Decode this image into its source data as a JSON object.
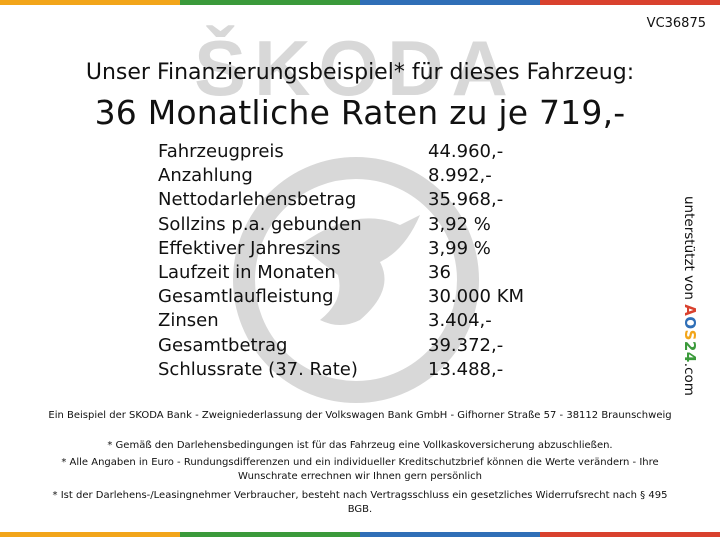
{
  "stripe_colors": [
    "#f2a51a",
    "#3b9a3b",
    "#2f6fb7",
    "#d9412e"
  ],
  "watermark": {
    "text": "ŠKODA",
    "color": "#d8d8d8"
  },
  "code": "VC36875",
  "heading": {
    "line1": "Unser Finanzierungsbeispiel* für dieses Fahrzeug:",
    "line2": "36 Monatliche Raten zu je 719,-"
  },
  "rows": [
    {
      "label": "Fahrzeugpreis",
      "value": "44.960,-"
    },
    {
      "label": "Anzahlung",
      "value": "8.992,-"
    },
    {
      "label": "Nettodarlehensbetrag",
      "value": "35.968,-"
    },
    {
      "label": "Sollzins p.a. gebunden",
      "value": "3,92 %"
    },
    {
      "label": "Effektiver Jahreszins",
      "value": "3,99 %"
    },
    {
      "label": "Laufzeit in Monaten",
      "value": "36"
    },
    {
      "label": "Gesamtlaufleistung",
      "value": "30.000 KM"
    },
    {
      "label": "Zinsen",
      "value": "3.404,-"
    },
    {
      "label": "Gesamtbetrag",
      "value": "39.372,-"
    },
    {
      "label": "Schlussrate (37. Rate)",
      "value": "13.488,-"
    }
  ],
  "side": {
    "prefix": "unterstützt von",
    "brand": [
      "A",
      "O",
      "S",
      "24"
    ],
    "suffix": ".com"
  },
  "footnotes": {
    "f1": "Ein Beispiel der SKODA Bank - Zweigniederlassung der Volkswagen Bank GmbH - Gifhorner Straße 57 - 38112 Braunschweig",
    "f2": "* Gemäß den Darlehensbedingungen ist für das Fahrzeug eine Vollkaskoversicherung abzuschließen.",
    "f3": "* Alle Angaben in Euro - Rundungsdifferenzen und ein individueller Kreditschutzbrief können die Werte verändern - Ihre Wunschrate errechnen wir Ihnen gern persönlich",
    "f4": "* Ist der Darlehens-/Leasingnehmer Verbraucher, besteht nach Vertragsschluss ein gesetzliches Widerrufsrecht nach § 495 BGB."
  }
}
